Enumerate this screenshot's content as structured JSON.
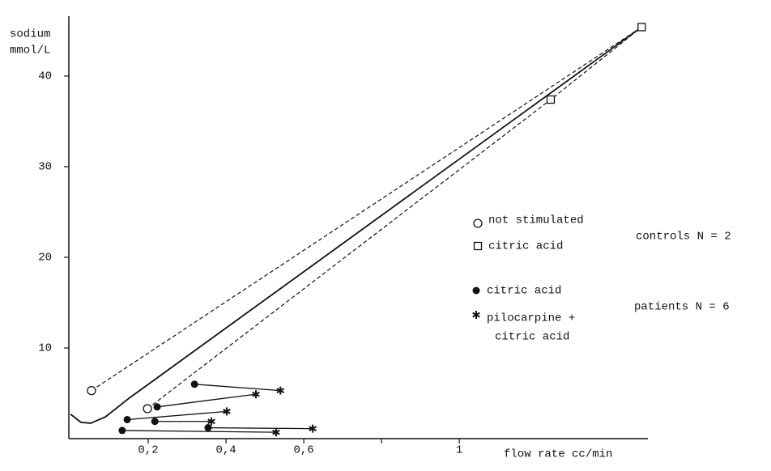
{
  "chart_data": {
    "type": "scatter",
    "y_label": [
      "sodium",
      "mmol/L"
    ],
    "x_label": "flow rate cc/min",
    "xlim": [
      0,
      1.485
    ],
    "ylim": [
      0,
      46.6
    ],
    "xticks": [
      {
        "value": 0.2,
        "label": "0,2"
      },
      {
        "value": 0.4,
        "label": "0,4"
      },
      {
        "value": 0.6,
        "label": "0,6"
      },
      {
        "value": 0.8,
        "label": null
      },
      {
        "value": 1,
        "label": "1"
      }
    ],
    "yticks": [
      10,
      20,
      30,
      40
    ],
    "color": "#111111",
    "series": [
      {
        "name": [
          "not stimulated"
        ],
        "marker": "circle-open",
        "x": [
          0.054,
          0.198
        ],
        "values": [
          5.3,
          3.3
        ]
      },
      {
        "name": [
          "citric acid"
        ],
        "marker": "square-open",
        "x": [
          1.235,
          1.469
        ],
        "values": [
          37.4,
          45.4
        ]
      },
      {
        "name": [
          "citric acid"
        ],
        "marker": "circle-filled",
        "x": [
          0.319,
          0.223,
          0.146,
          0.217,
          0.133,
          0.354
        ],
        "values": [
          6.0,
          3.5,
          2.1,
          1.9,
          0.9,
          1.2
        ]
      },
      {
        "name": [
          "pilocarpine +",
          "citric acid"
        ],
        "marker": "star",
        "x": [
          0.54,
          0.477,
          0.402,
          0.3625,
          0.529,
          0.623
        ],
        "values": [
          5.3,
          4.9,
          3.0,
          1.9,
          0.7,
          1.1
        ]
      }
    ],
    "group_labels": [
      "controls N = 2",
      "patients N = 6"
    ],
    "lines": [
      {
        "style": "solid",
        "x": [
          0,
          0.027,
          0.052,
          0.09,
          0.152,
          1.469
        ],
        "values": [
          2.7,
          1.8,
          1.7,
          2.4,
          4.5,
          45.4
        ]
      },
      {
        "style": "dashed",
        "x": [
          0.054,
          1.469
        ],
        "values": [
          5.3,
          45.4
        ]
      },
      {
        "style": "dashed",
        "x": [
          0.198,
          1.235,
          1.469
        ],
        "values": [
          3.3,
          37.4,
          45.4
        ]
      }
    ]
  }
}
